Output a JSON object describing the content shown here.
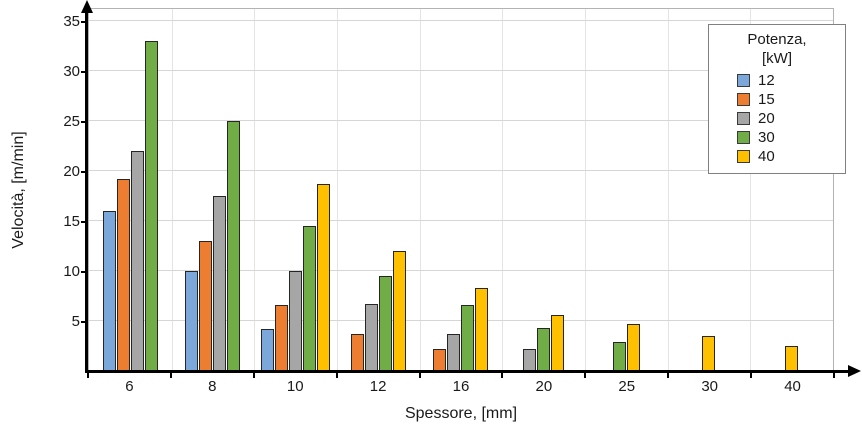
{
  "chart_data": {
    "type": "bar",
    "title": "",
    "xlabel": "Spessore, [mm]",
    "ylabel": "Velocità, [m/min]",
    "categories": [
      "6",
      "8",
      "10",
      "12",
      "16",
      "20",
      "25",
      "30",
      "40"
    ],
    "series": [
      {
        "name": "12",
        "color": "#7BA7DB",
        "values": [
          16,
          10,
          4.2,
          null,
          null,
          null,
          null,
          null,
          null
        ]
      },
      {
        "name": "15",
        "color": "#ED7D31",
        "values": [
          19.2,
          13,
          6.6,
          3.7,
          2.2,
          null,
          null,
          null,
          null
        ]
      },
      {
        "name": "20",
        "color": "#A6A6A6",
        "values": [
          22,
          17.5,
          10,
          6.7,
          3.7,
          2.2,
          null,
          null,
          null
        ]
      },
      {
        "name": "30",
        "color": "#70AD47",
        "values": [
          33,
          25,
          14.5,
          9.5,
          6.6,
          4.3,
          2.9,
          null,
          null
        ]
      },
      {
        "name": "40",
        "color": "#FFC000",
        "values": [
          null,
          null,
          18.7,
          12,
          8.3,
          5.6,
          4.7,
          3.5,
          2.5
        ]
      }
    ],
    "yticks": [
      5,
      10,
      15,
      20,
      25,
      30,
      35
    ],
    "ylim": [
      0,
      36.4
    ],
    "grid": "on",
    "legend_title_lines": [
      "Potenza,",
      "[kW]"
    ],
    "legend_position": "top-right"
  }
}
